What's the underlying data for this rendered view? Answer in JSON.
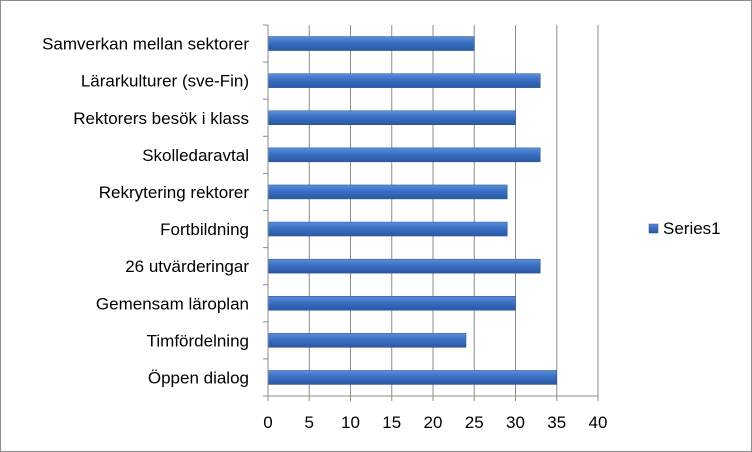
{
  "chart_data": {
    "type": "bar",
    "orientation": "horizontal",
    "categories": [
      "Samverkan mellan sektorer",
      "Lärarkulturer (sve-Fin)",
      "Rektorers besök i klass",
      "Skolledaravtal",
      "Rekrytering rektorer",
      "Fortbildning",
      "26 utvärderingar",
      "Gemensam läroplan",
      "Timfördelning",
      "Öppen dialog"
    ],
    "series": [
      {
        "name": "Series1",
        "values": [
          25,
          33,
          30,
          33,
          29,
          29,
          33,
          30,
          24,
          35
        ],
        "color": "#3a6fbf"
      }
    ],
    "xlim": [
      0,
      40
    ],
    "xticks": [
      "0",
      "5",
      "10",
      "15",
      "20",
      "25",
      "30",
      "35",
      "40"
    ],
    "grid": true,
    "legend_position": "right"
  }
}
